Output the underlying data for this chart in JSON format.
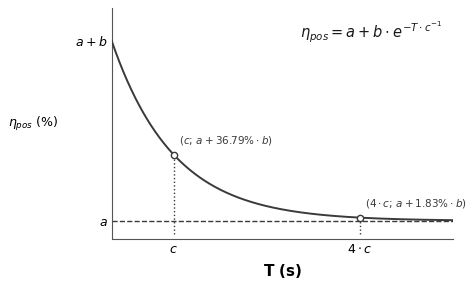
{
  "title_formula": "$\\eta_{pos}=a+b\\cdot e^{-T\\cdot c^{-1}}$",
  "ylabel_text": "$\\eta_{pos}$ (%)",
  "xlabel_text": "$\\mathbf{T}$ (s)",
  "bg_color": "#ffffff",
  "curve_color": "#3a3a3a",
  "dashed_color": "#3a3a3a",
  "point_color": "#ffffff",
  "point_edge_color": "#3a3a3a",
  "c_val": 1.0,
  "x_max_factor": 5.5,
  "annotation1_text": "$(c;\\,a+36.79\\%\\cdot b)$",
  "annotation2_text": "$(4\\cdot c;\\,a+1.83\\%\\cdot b)$",
  "label_a_plus_b": "$a+b$",
  "label_a": "$a$"
}
